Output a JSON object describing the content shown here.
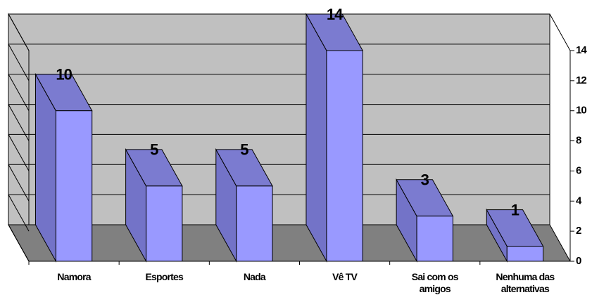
{
  "chart_data": {
    "type": "bar3d",
    "categories": [
      "Namora",
      "Esportes",
      "Nada",
      "Vê TV",
      "Sai com os amigos",
      "Nenhuma das alternativas"
    ],
    "values": [
      10,
      5,
      5,
      14,
      3,
      1
    ],
    "color": "#9999ff",
    "ylim": [
      0,
      14
    ],
    "yticks": [
      0,
      2,
      4,
      6,
      8,
      10,
      12,
      14
    ],
    "grid": true
  }
}
